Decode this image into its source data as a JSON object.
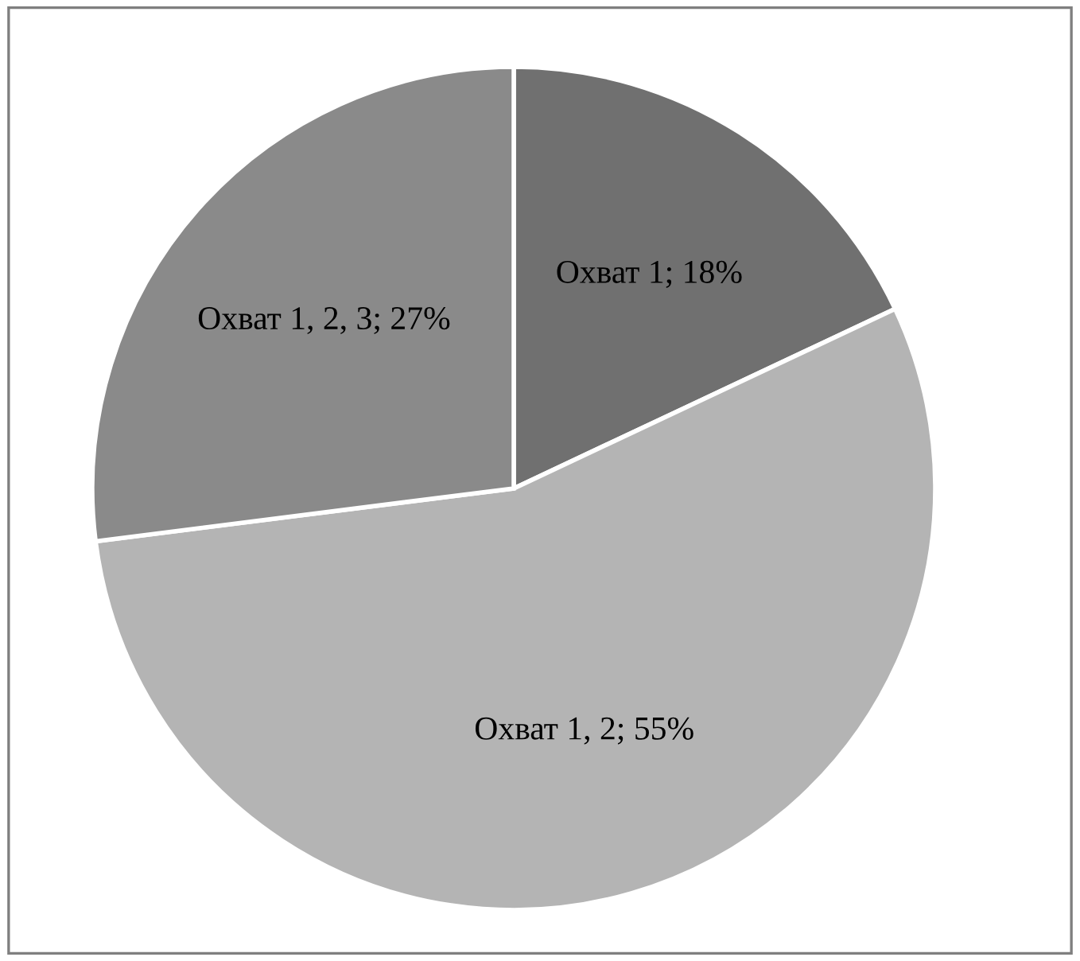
{
  "chart_data": {
    "type": "pie",
    "categories": [
      "Охват 1",
      "Охват 1, 2",
      "Охват 1, 2, 3"
    ],
    "values": [
      18,
      55,
      27
    ],
    "value_labels": [
      "18%",
      "55%",
      "27%"
    ],
    "colors": [
      "#707070",
      "#b4b4b4",
      "#8a8a8a"
    ]
  }
}
